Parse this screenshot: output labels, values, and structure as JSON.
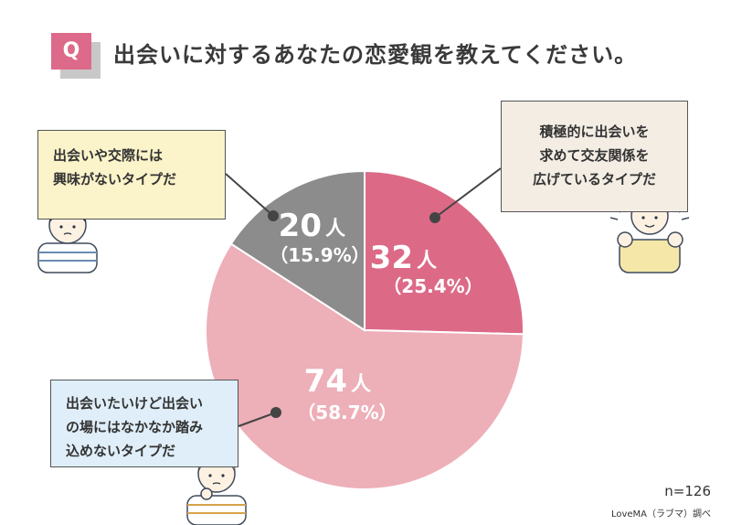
{
  "header": {
    "badge": "Q",
    "question": "出会いに対するあなたの恋愛観を教えてください。"
  },
  "callouts": {
    "left": [
      "出会いや交際には",
      "興味がないタイプだ"
    ],
    "right": [
      "積極的に出会いを",
      "求めて交友関係を",
      "広げているタイプだ"
    ],
    "bottom": [
      "出会いたいけど出会い",
      "の場にはなかなか踏み",
      "込めないタイプだ"
    ]
  },
  "footer": {
    "n": "n=126",
    "source": "LoveMA（ラブマ）調べ"
  },
  "chart_data": {
    "type": "pie",
    "title": "出会いに対するあなたの恋愛観を教えてください。",
    "total": 126,
    "slices": [
      {
        "label": "積極的に出会いを求めて交友関係を広げているタイプだ",
        "count": 32,
        "count_text": "32",
        "unit": "人",
        "percent": 25.4,
        "percent_text": "（25.4%）",
        "color": "#dc6a87"
      },
      {
        "label": "出会いたいけど出会いの場にはなかなか踏み込めないタイプだ",
        "count": 74,
        "count_text": "74",
        "unit": "人",
        "percent": 58.7,
        "percent_text": "（58.7%）",
        "color": "#edafb8"
      },
      {
        "label": "出会いや交際には興味がないタイプだ",
        "count": 20,
        "count_text": "20",
        "unit": "人",
        "percent": 15.9,
        "percent_text": "（15.9%）",
        "color": "#8c8c8c"
      }
    ]
  }
}
